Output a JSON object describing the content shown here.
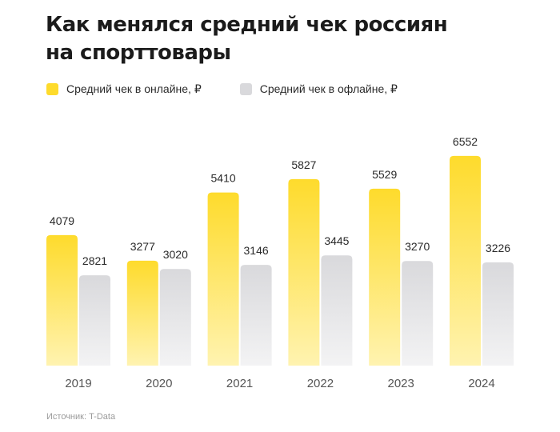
{
  "title_line1": "Как менялся средний чек россиян",
  "title_line2": "на спорттовары",
  "source": "Источник: T-Data",
  "colors": {
    "online_top": "#fedb2c",
    "online_bottom": "#fff3b0",
    "offline_top": "#d9d9dc",
    "offline_bottom": "#f3f3f4"
  },
  "chart_data": {
    "type": "bar",
    "categories": [
      "2019",
      "2020",
      "2021",
      "2022",
      "2023",
      "2024"
    ],
    "series": [
      {
        "name": "Средний чек в онлайне, ₽",
        "values": [
          4079,
          3277,
          5410,
          5827,
          5529,
          6552
        ]
      },
      {
        "name": "Средний чек в офлайне, ₽",
        "values": [
          2821,
          3020,
          3146,
          3445,
          3270,
          3226
        ]
      }
    ],
    "legend": "top-left",
    "grid": false
  }
}
